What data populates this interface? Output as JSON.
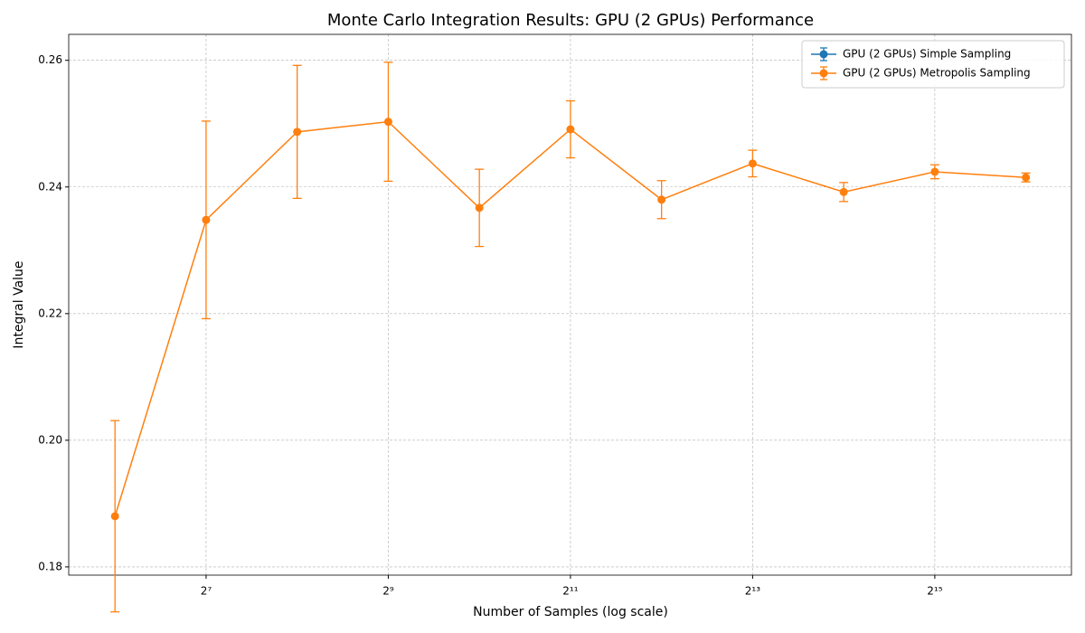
{
  "chart_data": {
    "type": "errorbar-line",
    "title": "Monte Carlo Integration Results: GPU (2 GPUs) Performance",
    "xlabel": "Number of Samples (log scale)",
    "ylabel": "Integral Value",
    "x": [
      64,
      128,
      256,
      512,
      1024,
      2048,
      4096,
      8192,
      16384,
      32768,
      65536
    ],
    "series": [
      {
        "name": "GPU (2 GPUs) Simple Sampling",
        "color": "#1f77b4",
        "values": [
          null,
          null,
          null,
          null,
          null,
          null,
          null,
          null,
          null,
          null,
          null
        ],
        "errors": [
          null,
          null,
          null,
          null,
          null,
          null,
          null,
          null,
          null,
          null,
          null
        ]
      },
      {
        "name": "GPU (2 GPUs) Metropolis Sampling",
        "color": "#ff7f0e",
        "values": [
          0.188,
          0.2348,
          0.2487,
          0.2503,
          0.2367,
          0.2491,
          0.238,
          0.2437,
          0.2392,
          0.2424,
          0.2415
        ],
        "errors": [
          0.0151,
          0.0156,
          0.0105,
          0.0094,
          0.0061,
          0.0045,
          0.003,
          0.0021,
          0.0015,
          0.0011,
          0.0007
        ]
      }
    ],
    "xscale": "log2",
    "xlim": [
      45,
      92682
    ],
    "xticks": [
      {
        "value": 128,
        "label": "2⁷"
      },
      {
        "value": 512,
        "label": "2⁹"
      },
      {
        "value": 2048,
        "label": "2¹¹"
      },
      {
        "value": 8192,
        "label": "2¹³"
      },
      {
        "value": 32768,
        "label": "2¹⁵"
      }
    ],
    "ylim": [
      0.1787,
      0.2641
    ],
    "yticks": [
      0.18,
      {
        "value": 0.2,
        "label": "0.20"
      },
      0.22,
      0.24,
      0.26
    ],
    "grid": true,
    "legend": "upper right"
  }
}
